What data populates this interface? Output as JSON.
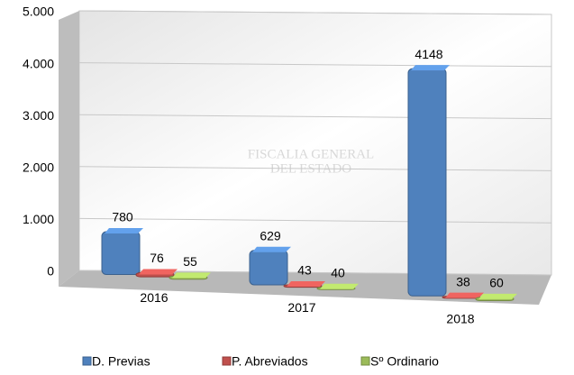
{
  "chart_data": {
    "type": "bar3d",
    "categories": [
      "2016",
      "2017",
      "2018"
    ],
    "series": [
      {
        "name": "D. Previas",
        "color": "#4f81bd",
        "values": [
          780,
          629,
          4148
        ]
      },
      {
        "name": "P. Abreviados",
        "color": "#c0504d",
        "values": [
          76,
          43,
          38
        ]
      },
      {
        "name": "Sº Ordinario",
        "color": "#9bbb59",
        "values": [
          55,
          40,
          60
        ]
      }
    ],
    "ylim": [
      0,
      5000
    ],
    "yticks": [
      0,
      {
        "value": 1000,
        "label": "1.000"
      },
      {
        "value": 2000,
        "label": "2.000"
      },
      {
        "value": 3000,
        "label": "3.000"
      },
      {
        "value": 4000,
        "label": "4.000"
      },
      {
        "value": 5000,
        "label": "5.000"
      }
    ],
    "grid": true,
    "legend": "bottom",
    "watermark": [
      "FISCALIA GENERAL",
      "DEL ESTADO"
    ]
  }
}
